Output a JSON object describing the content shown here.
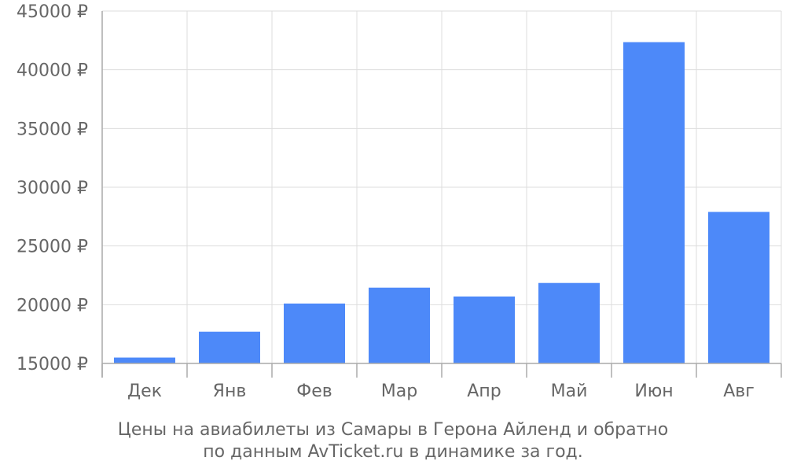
{
  "chart_data": {
    "type": "bar",
    "categories": [
      "Дек",
      "Янв",
      "Фев",
      "Мар",
      "Апр",
      "Май",
      "Июн",
      "Авг"
    ],
    "values": [
      15500,
      17700,
      20100,
      21450,
      20700,
      21850,
      42350,
      27900
    ],
    "ylim": [
      15000,
      45000
    ],
    "yticks": [
      15000,
      20000,
      25000,
      30000,
      35000,
      40000,
      45000
    ],
    "ytick_suffix": " ₽",
    "grid": true,
    "bar_color": "#4d89f9",
    "grid_color": "#dddddd",
    "axis_color": "#aaaaaa",
    "text_color": "#666666"
  },
  "caption": {
    "line1": "Цены на авиабилеты из Самары в Герона Айленд и обратно",
    "line2": "по данным AvTicket.ru в динамике за год."
  }
}
